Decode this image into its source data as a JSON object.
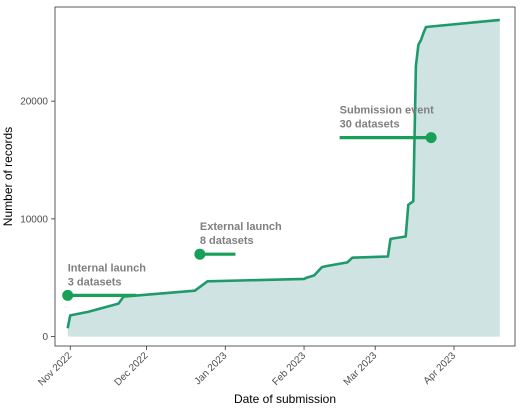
{
  "chart_data": {
    "type": "area",
    "title": "",
    "xlabel": "Date of submission",
    "ylabel": "Number of records",
    "xlim": [
      "2022-10-26",
      "2023-04-25"
    ],
    "ylim": [
      -800,
      28000
    ],
    "grid": false,
    "x_ticks": [
      {
        "date": "2022-11-01",
        "label": "Nov 2022"
      },
      {
        "date": "2022-12-01",
        "label": "Dec 2022"
      },
      {
        "date": "2023-01-01",
        "label": "Jan 2023"
      },
      {
        "date": "2023-02-01",
        "label": "Feb 2023"
      },
      {
        "date": "2023-03-01",
        "label": "Mar 2023"
      },
      {
        "date": "2023-04-01",
        "label": "Apr 2023"
      }
    ],
    "y_ticks": [
      {
        "value": 0,
        "label": "0"
      },
      {
        "value": 10000,
        "label": "10000"
      },
      {
        "value": 20000,
        "label": "20000"
      }
    ],
    "series": [
      {
        "x": [
          "2022-10-31",
          "2022-11-01",
          "2022-11-08",
          "2022-11-20",
          "2022-11-22",
          "2022-12-20",
          "2022-12-25",
          "2023-02-01",
          "2023-02-02",
          "2023-02-05",
          "2023-02-08",
          "2023-02-10",
          "2023-02-18",
          "2023-02-20",
          "2023-03-06",
          "2023-03-07",
          "2023-03-13",
          "2023-03-14",
          "2023-03-16",
          "2023-03-17",
          "2023-03-18",
          "2023-03-19",
          "2023-03-20",
          "2023-03-21",
          "2023-04-19"
        ],
        "values": [
          700,
          1800,
          2100,
          2800,
          3400,
          3900,
          4700,
          4900,
          5000,
          5200,
          5900,
          6000,
          6300,
          6700,
          6800,
          8300,
          8500,
          11200,
          11500,
          23000,
          24800,
          25200,
          25800,
          26300,
          26900
        ]
      }
    ],
    "annotations": [
      {
        "line1": "Internal launch",
        "line2": "3 datasets",
        "date": "2022-10-31",
        "value": 3500,
        "line_end_date": "2022-11-27"
      },
      {
        "line1": "External launch",
        "line2": "8 datasets",
        "date": "2022-12-22",
        "value": 7000,
        "line_end_date": "2023-01-05"
      },
      {
        "line1": "Submission event",
        "line2": "30 datasets",
        "date": "2023-03-23",
        "value": 16900,
        "line_start_date": "2023-02-15"
      }
    ],
    "colors": {
      "line": "#1f9a6a",
      "fill": "#cfe3e3",
      "marker": "#18a058",
      "annotation_text": "#7f7f7f"
    }
  }
}
